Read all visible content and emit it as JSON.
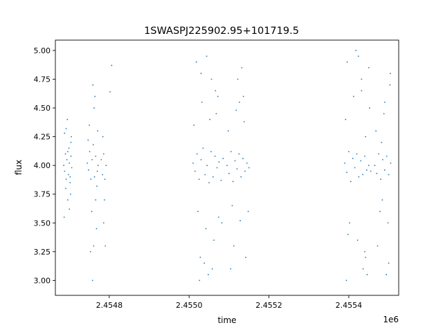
{
  "chart_data": {
    "type": "scatter",
    "title": "1SWASPJ225902.95+101719.5",
    "xlabel": "time",
    "ylabel": "flux",
    "x_offset_label": "1e6",
    "xlim": [
      2454665,
      2455525
    ],
    "ylim": [
      2.87,
      5.09
    ],
    "x_ticks": [
      {
        "value": 2454800,
        "label": "2.4548"
      },
      {
        "value": 2455000,
        "label": "2.4550"
      },
      {
        "value": 2455200,
        "label": "2.4552"
      },
      {
        "value": 2455400,
        "label": "2.4554"
      }
    ],
    "y_ticks": [
      {
        "value": 3.0,
        "label": "3.00"
      },
      {
        "value": 3.25,
        "label": "3.25"
      },
      {
        "value": 3.5,
        "label": "3.50"
      },
      {
        "value": 3.75,
        "label": "3.75"
      },
      {
        "value": 4.0,
        "label": "4.00"
      },
      {
        "value": 4.25,
        "label": "4.25"
      },
      {
        "value": 4.5,
        "label": "4.50"
      },
      {
        "value": 4.75,
        "label": "4.75"
      },
      {
        "value": 5.0,
        "label": "5.00"
      }
    ],
    "grid": false,
    "marker_color": "#1f77b4",
    "series": [
      {
        "x": [
          2454686,
          2454688,
          2454690,
          2454692,
          2454694,
          2454696,
          2454698,
          2454700,
          2454702,
          2454704,
          2454706,
          2454688,
          2454692,
          2454696,
          2454700,
          2454704,
          2454687,
          2454695,
          2454703,
          2454705,
          2454691,
          2454699,
          2454702,
          2454745,
          2454748,
          2454751,
          2454754,
          2454757,
          2454760,
          2454763,
          2454766,
          2454769,
          2454772,
          2454750,
          2454756,
          2454762,
          2454768,
          2454753,
          2454759,
          2454758,
          2454764,
          2454747,
          2454766,
          2454761,
          2454771,
          2454770,
          2454780,
          2454783,
          2454786,
          2454789,
          2454792,
          2454784,
          2454788,
          2454802,
          2454786,
          2454790,
          2454806,
          2455010,
          2455015,
          2455020,
          2455025,
          2455030,
          2455035,
          2455040,
          2455045,
          2455050,
          2455055,
          2455060,
          2455065,
          2455070,
          2455075,
          2455080,
          2455085,
          2455012,
          2455022,
          2455032,
          2455042,
          2455052,
          2455062,
          2455072,
          2455082,
          2455018,
          2455048,
          2455028,
          2455056,
          2455038,
          2455066,
          2455030,
          2455044,
          2455058,
          2455074,
          2455026,
          2455068,
          2455095,
          2455100,
          2455105,
          2455110,
          2455115,
          2455120,
          2455125,
          2455130,
          2455135,
          2455140,
          2455145,
          2455150,
          2455098,
          2455108,
          2455118,
          2455128,
          2455138,
          2455148,
          2455122,
          2455112,
          2455132,
          2455142,
          2455104,
          2455126,
          2455136,
          2455390,
          2455395,
          2455400,
          2455405,
          2455410,
          2455415,
          2455420,
          2455425,
          2455430,
          2455435,
          2455440,
          2455445,
          2455450,
          2455455,
          2455392,
          2455402,
          2455412,
          2455422,
          2455432,
          2455442,
          2455452,
          2455396,
          2455394,
          2455424,
          2455436,
          2455418,
          2455446,
          2455450,
          2455398,
          2455432,
          2455440,
          2455442,
          2455465,
          2455470,
          2455475,
          2455480,
          2455485,
          2455490,
          2455495,
          2455500,
          2455505,
          2455468,
          2455478,
          2455488,
          2455498,
          2455503,
          2455472,
          2455490,
          2455500,
          2455494,
          2455482,
          2455504,
          2455484
        ],
        "y": [
          4.0,
          3.95,
          4.1,
          3.88,
          4.05,
          4.12,
          3.92,
          4.02,
          3.85,
          4.08,
          3.98,
          4.28,
          4.32,
          3.7,
          3.62,
          4.2,
          3.55,
          4.4,
          3.75,
          4.25,
          3.8,
          4.15,
          3.9,
          4.02,
          3.96,
          4.12,
          3.88,
          4.05,
          4.18,
          3.9,
          4.08,
          3.82,
          4.0,
          4.35,
          3.6,
          4.5,
          3.45,
          3.25,
          4.7,
          3.0,
          4.6,
          4.22,
          3.7,
          3.3,
          4.3,
          3.95,
          4.05,
          3.92,
          4.1,
          3.88,
          4.0,
          4.25,
          3.7,
          4.64,
          3.5,
          3.3,
          4.87,
          4.02,
          3.95,
          4.1,
          3.88,
          4.05,
          4.15,
          3.92,
          4.0,
          3.85,
          4.12,
          3.9,
          4.08,
          3.98,
          4.03,
          3.87,
          4.06,
          4.35,
          3.6,
          4.55,
          3.45,
          4.4,
          3.35,
          4.6,
          3.5,
          4.9,
          3.05,
          3.2,
          4.75,
          3.15,
          4.65,
          4.8,
          4.95,
          3.1,
          3.55,
          3.0,
          4.45,
          4.0,
          3.93,
          4.12,
          3.86,
          4.04,
          3.97,
          4.1,
          3.9,
          4.06,
          3.95,
          4.02,
          3.98,
          4.3,
          3.65,
          4.48,
          3.52,
          4.38,
          3.6,
          4.75,
          3.3,
          4.85,
          3.2,
          3.1,
          4.55,
          4.6,
          4.02,
          3.94,
          4.12,
          3.86,
          4.06,
          3.98,
          4.1,
          3.9,
          4.04,
          3.92,
          4.08,
          3.96,
          4.0,
          3.95,
          4.4,
          3.5,
          4.6,
          3.35,
          4.75,
          3.2,
          4.5,
          4.9,
          3.0,
          4.95,
          3.1,
          5.0,
          3.05,
          4.85,
          3.4,
          4.65,
          3.25,
          4.25,
          4.0,
          3.93,
          4.1,
          3.88,
          4.05,
          3.96,
          4.08,
          3.92,
          4.02,
          4.3,
          3.6,
          4.45,
          3.5,
          4.7,
          3.3,
          4.55,
          3.15,
          3.05,
          4.2,
          4.8,
          3.7
        ]
      }
    ]
  }
}
